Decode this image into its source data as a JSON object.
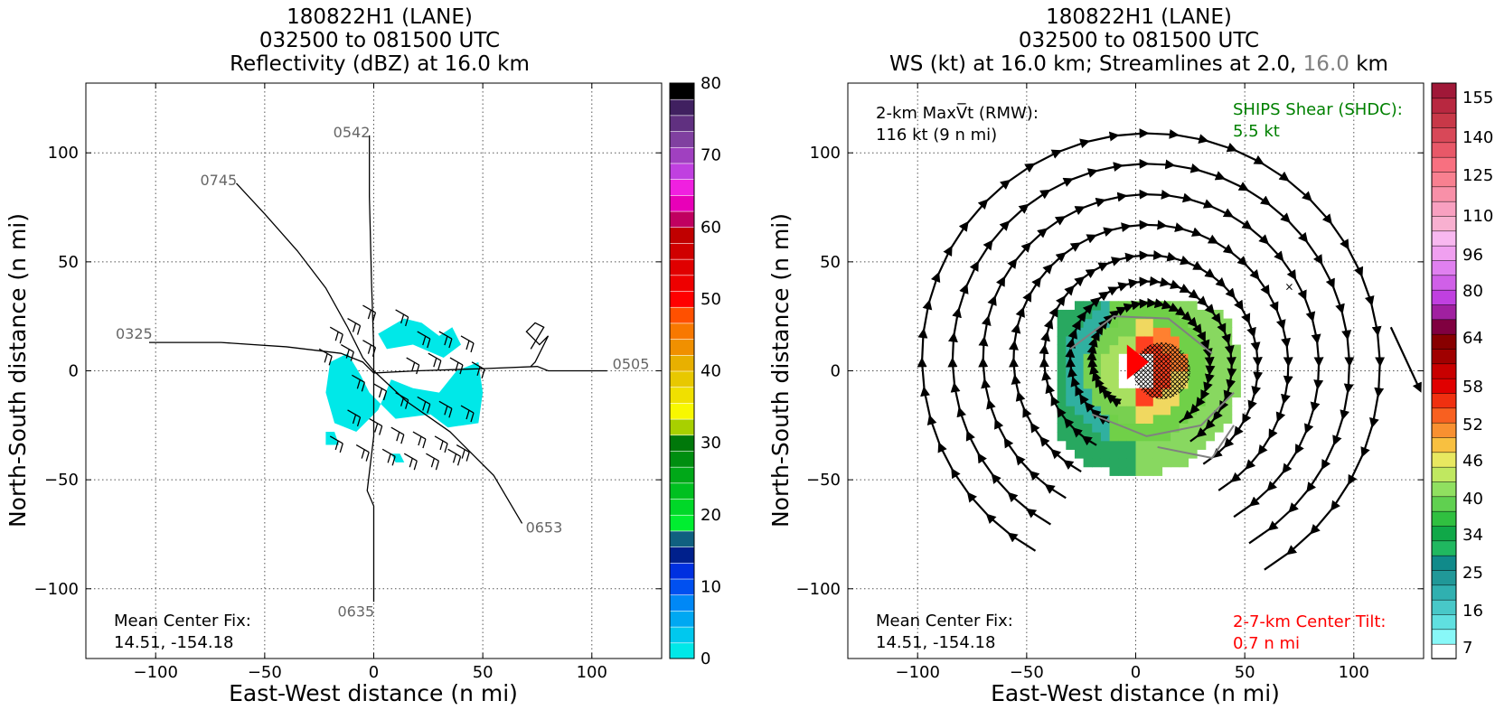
{
  "left_panel": {
    "title_lines": [
      "180822H1 (LANE)",
      "032500 to 081500 UTC",
      "Reflectivity (dBZ) at 16.0 km"
    ],
    "xlabel": "East-West distance (n mi)",
    "ylabel": "North-South distance (n mi)",
    "center_fix_label": "Mean Center Fix:",
    "center_fix_value": "14.51, -154.18",
    "track_labels": [
      "0325",
      "0745",
      "0542",
      "0505",
      "0653",
      "0635"
    ],
    "colorbar_ticks": [
      "0",
      "10",
      "20",
      "30",
      "40",
      "50",
      "60",
      "70",
      "80"
    ]
  },
  "right_panel": {
    "title_lines": [
      "180822H1 (LANE)",
      "032500 to 081500 UTC"
    ],
    "title_line3_main": "WS (kt) at 16.0 km; Streamlines at 2.0, ",
    "title_line3_grey": "16.0",
    "title_line3_end": " km",
    "xlabel": "East-West distance (n mi)",
    "ylabel": "North-South distance (n mi)",
    "maxvt_line1": "2-km MaxV̅t (RMW):",
    "maxvt_line2": "116 kt (9 n mi)",
    "ships_line1": "SHIPS Shear (SHDC):",
    "ships_line2": "5.5 kt",
    "tilt_line1": "2-7-km Center Tilt:",
    "tilt_line2": "0.7 n mi",
    "center_fix_label": "Mean Center Fix:",
    "center_fix_value": "14.51, -154.18",
    "colorbar_ticks": [
      "7",
      "16",
      "25",
      "34",
      "40",
      "46",
      "52",
      "58",
      "64",
      "80",
      "96",
      "110",
      "125",
      "140",
      "155"
    ]
  },
  "colors": {
    "ships_green": "#008000",
    "tilt_red": "#ff0000",
    "track_label_grey": "#666666",
    "reflectivity_cyan": "#00e8e8"
  },
  "chart_data": [
    {
      "type": "heatmap",
      "name": "reflectivity",
      "xlim": [
        -132,
        132
      ],
      "ylim": [
        -132,
        132
      ],
      "xticks": [
        -100,
        -50,
        0,
        50,
        100
      ],
      "yticks": [
        -100,
        -50,
        0,
        50,
        100
      ],
      "grid": true,
      "colorbar": {
        "min": 0,
        "max": 80,
        "ticks": [
          0,
          10,
          20,
          30,
          40,
          50,
          60,
          70,
          80
        ]
      },
      "tracks": [
        {
          "label": "0325",
          "start": [
            -103,
            13
          ]
        },
        {
          "label": "0745",
          "start": [
            -63,
            86
          ]
        },
        {
          "label": "0542",
          "start": [
            -2,
            108
          ]
        },
        {
          "label": "0505",
          "start": [
            107,
            0
          ]
        },
        {
          "label": "0653",
          "start": [
            68,
            -70
          ]
        },
        {
          "label": "0635",
          "start": [
            0,
            -106
          ]
        }
      ],
      "center_fix": [
        14.51,
        -154.18
      ]
    },
    {
      "type": "heatmap",
      "name": "wind speed",
      "xlim": [
        -132,
        132
      ],
      "ylim": [
        -132,
        132
      ],
      "xticks": [
        -100,
        -50,
        0,
        50,
        100
      ],
      "yticks": [
        -100,
        -50,
        0,
        50,
        100
      ],
      "grid": true,
      "colorbar": {
        "levels": [
          7,
          16,
          25,
          34,
          40,
          46,
          52,
          58,
          64,
          80,
          96,
          110,
          125,
          140,
          155
        ]
      },
      "max_vt_kt": 116,
      "rmw_nmi": 9,
      "ships_shear_kt": 5.5,
      "center_tilt_nmi": 0.7,
      "center_fix": [
        14.51,
        -154.18
      ]
    }
  ]
}
